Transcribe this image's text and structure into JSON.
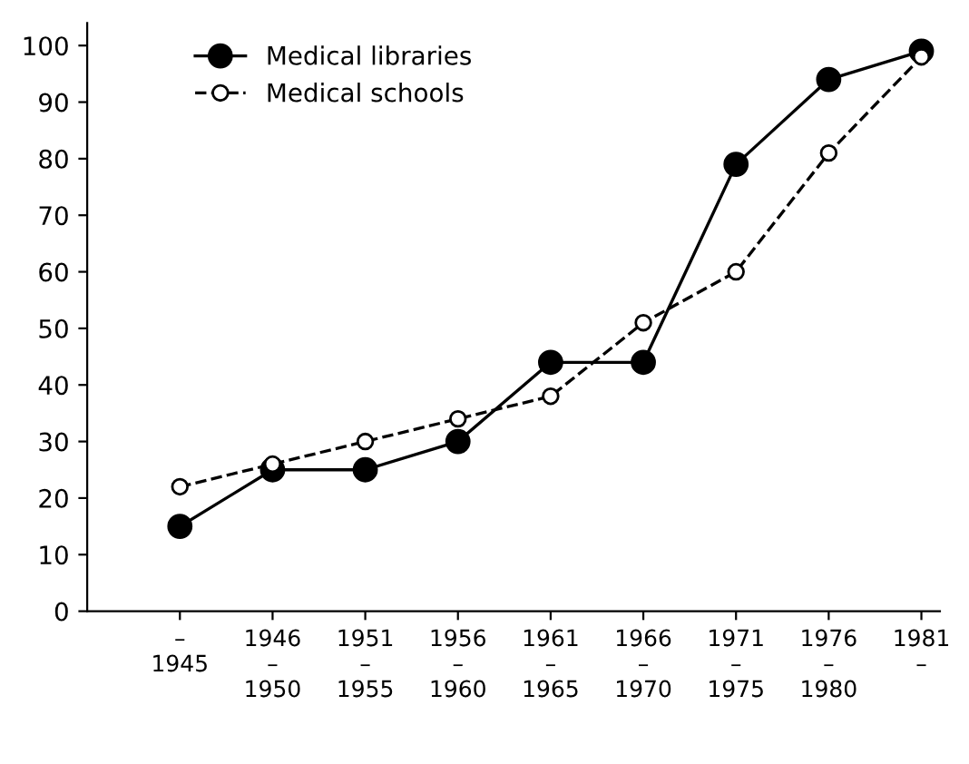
{
  "chart_data": {
    "type": "line",
    "categories": [
      "–\n1945",
      "1946\n–\n1950",
      "1951\n–\n1955",
      "1956\n–\n1960",
      "1961\n–\n1965",
      "1966\n–\n1970",
      "1971\n–\n1975",
      "1976\n–\n1980",
      "1981\n–"
    ],
    "series": [
      {
        "name": "Medical libraries",
        "color": "#000000",
        "line_style": "solid",
        "values": [
          15,
          25,
          25,
          30,
          44,
          44,
          79,
          94,
          99
        ]
      },
      {
        "name": "Medical schools",
        "color": "#000000",
        "line_style": "dashed",
        "values": [
          22,
          26,
          30,
          34,
          38,
          51,
          60,
          81,
          98
        ]
      }
    ],
    "ylim": [
      0,
      104
    ],
    "yticks": [
      0,
      10,
      20,
      30,
      40,
      50,
      60,
      70,
      80,
      90,
      100
    ],
    "marker": "circle",
    "grid": false,
    "legend": "top left"
  }
}
